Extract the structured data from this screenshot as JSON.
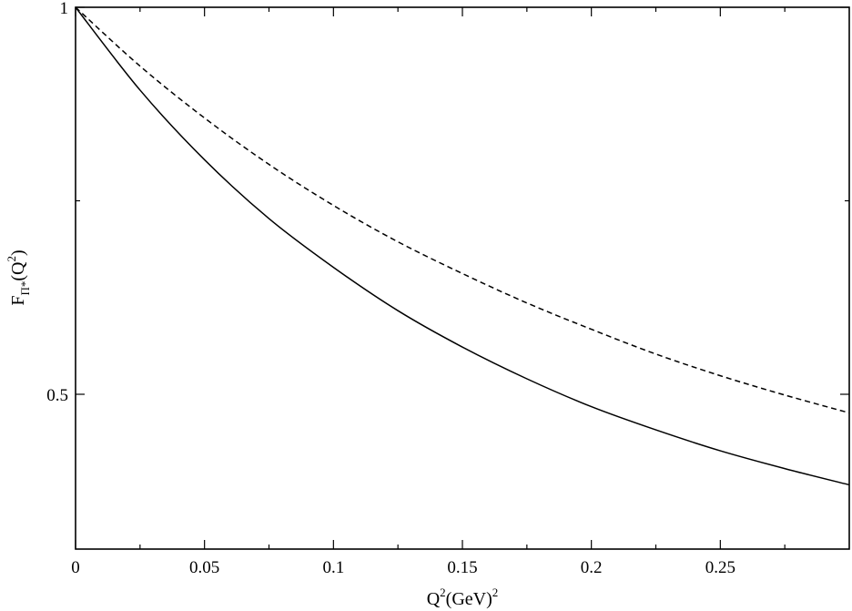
{
  "chart_data": {
    "type": "line",
    "title": "",
    "xlabel": {
      "base": "Q",
      "sup": "2",
      "rest": "(GeV)",
      "sup2": "2"
    },
    "ylabel": {
      "base": "F",
      "sub": "Π*",
      "open": "(Q",
      "sup": "2",
      "close": ")"
    },
    "xlim": [
      0,
      0.3
    ],
    "ylim": [
      0.3,
      1.0
    ],
    "x_ticks_major": [
      0,
      0.05,
      0.1,
      0.15,
      0.2,
      0.25
    ],
    "x_tick_labels": [
      "0",
      "0.05",
      "0.1",
      "0.15",
      "0.2",
      "0.25"
    ],
    "x_ticks_minor": [
      0.025,
      0.075,
      0.125,
      0.175,
      0.225,
      0.275
    ],
    "y_ticks_major": [
      0.5,
      1.0
    ],
    "y_tick_labels": [
      "0.5",
      "1"
    ],
    "y_ticks_minor": [
      0.75
    ],
    "grid": false,
    "series": [
      {
        "style": "solid",
        "color": "#000000",
        "x": [
          0,
          0.025,
          0.05,
          0.075,
          0.1,
          0.125,
          0.15,
          0.175,
          0.2,
          0.225,
          0.25,
          0.275,
          0.3
        ],
        "y": [
          1.0,
          0.893,
          0.803,
          0.727,
          0.664,
          0.608,
          0.561,
          0.52,
          0.484,
          0.454,
          0.427,
          0.404,
          0.383
        ]
      },
      {
        "style": "dashed",
        "color": "#000000",
        "x": [
          0,
          0.025,
          0.05,
          0.075,
          0.1,
          0.125,
          0.15,
          0.175,
          0.2,
          0.225,
          0.25,
          0.275,
          0.3
        ],
        "y": [
          1.0,
          0.924,
          0.857,
          0.797,
          0.744,
          0.697,
          0.656,
          0.618,
          0.584,
          0.552,
          0.524,
          0.499,
          0.476
        ]
      }
    ]
  }
}
